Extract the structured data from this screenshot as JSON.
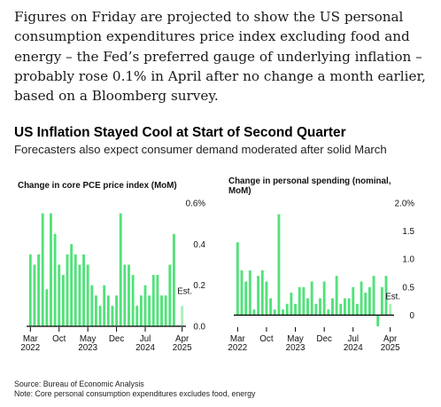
{
  "article": {
    "paragraph": "Figures on Friday are projected to show the US personal consumption expenditures price index excluding food and energy – the Fed’s preferred gauge of underlying inflation – probably rose 0.1% in April after no change a month earlier, based on a Bloomberg survey."
  },
  "figure": {
    "title": "US Inflation Stayed Cool at Start of Second Quarter",
    "subtitle": "Forecasters also expect consumer demand moderated after solid March"
  },
  "footer": {
    "source": "Source: Bureau of Economic Analysis",
    "note": "Note: Core personal consumption expenditures excludes food, energy"
  },
  "colors": {
    "bar": "#52e27a",
    "estimate": "#a8efbb",
    "axis": "#000000",
    "text": "#111111"
  },
  "chart_data": [
    {
      "type": "bar",
      "title": "Change in core PCE price index (MoM)",
      "unit": "%",
      "ylim": [
        0,
        0.6
      ],
      "yticks": [
        {
          "value": 0,
          "label": "0.0"
        },
        {
          "value": 0.2,
          "label": "0.2"
        },
        {
          "value": 0.4,
          "label": "0.4"
        },
        {
          "value": 0.6,
          "label": "0.6%"
        }
      ],
      "x": [
        "2022-03",
        "2022-04",
        "2022-05",
        "2022-06",
        "2022-07",
        "2022-08",
        "2022-09",
        "2022-10",
        "2022-11",
        "2022-12",
        "2023-01",
        "2023-02",
        "2023-03",
        "2023-04",
        "2023-05",
        "2023-06",
        "2023-07",
        "2023-08",
        "2023-09",
        "2023-10",
        "2023-11",
        "2023-12",
        "2024-01",
        "2024-02",
        "2024-03",
        "2024-04",
        "2024-05",
        "2024-06",
        "2024-07",
        "2024-08",
        "2024-09",
        "2024-10",
        "2024-11",
        "2024-12",
        "2025-01",
        "2025-02",
        "2025-03",
        "2025-04"
      ],
      "values": [
        0.35,
        0.3,
        0.35,
        0.55,
        0.18,
        0.55,
        0.45,
        0.3,
        0.25,
        0.35,
        0.4,
        0.35,
        0.3,
        0.35,
        0.3,
        0.2,
        0.15,
        0.1,
        0.2,
        0.15,
        0.1,
        0.15,
        0.55,
        0.3,
        0.3,
        0.25,
        0.1,
        0.15,
        0.2,
        0.15,
        0.25,
        0.25,
        0.15,
        0.15,
        0.3,
        0.45,
        0.0,
        0.1
      ],
      "estimated_last": true,
      "estimate_label": "Est.",
      "xticks": [
        {
          "index": 0,
          "month": "Mar",
          "year": "2022"
        },
        {
          "index": 7,
          "month": "Oct",
          "year": ""
        },
        {
          "index": 14,
          "month": "May",
          "year": "2023"
        },
        {
          "index": 21,
          "month": "Dec",
          "year": ""
        },
        {
          "index": 28,
          "month": "Jul",
          "year": "2024"
        },
        {
          "index": 37,
          "month": "Apr",
          "year": "2025"
        }
      ],
      "grid": false
    },
    {
      "type": "bar",
      "title": "Change in personal spending (nominal, MoM)",
      "unit": "%",
      "ylim": [
        -0.2,
        2.0
      ],
      "yticks": [
        {
          "value": 0,
          "label": "0"
        },
        {
          "value": 0.5,
          "label": "0.5"
        },
        {
          "value": 1.0,
          "label": "1.0"
        },
        {
          "value": 1.5,
          "label": "1.5"
        },
        {
          "value": 2.0,
          "label": "2.0%"
        }
      ],
      "x": [
        "2022-03",
        "2022-04",
        "2022-05",
        "2022-06",
        "2022-07",
        "2022-08",
        "2022-09",
        "2022-10",
        "2022-11",
        "2022-12",
        "2023-01",
        "2023-02",
        "2023-03",
        "2023-04",
        "2023-05",
        "2023-06",
        "2023-07",
        "2023-08",
        "2023-09",
        "2023-10",
        "2023-11",
        "2023-12",
        "2024-01",
        "2024-02",
        "2024-03",
        "2024-04",
        "2024-05",
        "2024-06",
        "2024-07",
        "2024-08",
        "2024-09",
        "2024-10",
        "2024-11",
        "2024-12",
        "2025-01",
        "2025-02",
        "2025-03",
        "2025-04"
      ],
      "values": [
        1.3,
        0.8,
        0.6,
        0.8,
        0.1,
        0.7,
        0.8,
        0.6,
        0.3,
        0.1,
        1.8,
        0.1,
        0.2,
        0.4,
        0.2,
        0.5,
        0.5,
        0.3,
        0.6,
        0.2,
        0.3,
        0.6,
        0.1,
        0.3,
        0.7,
        0.2,
        0.3,
        0.3,
        0.5,
        0.2,
        0.6,
        0.4,
        0.5,
        0.7,
        -0.2,
        0.5,
        0.7,
        0.2
      ],
      "estimated_last": true,
      "estimate_label": "Est.",
      "xticks": [
        {
          "index": 0,
          "month": "Mar",
          "year": "2022"
        },
        {
          "index": 7,
          "month": "Oct",
          "year": ""
        },
        {
          "index": 14,
          "month": "May",
          "year": "2023"
        },
        {
          "index": 21,
          "month": "Dec",
          "year": ""
        },
        {
          "index": 28,
          "month": "Jul",
          "year": "2024"
        },
        {
          "index": 37,
          "month": "Apr",
          "year": "2025"
        }
      ],
      "grid": false
    }
  ]
}
